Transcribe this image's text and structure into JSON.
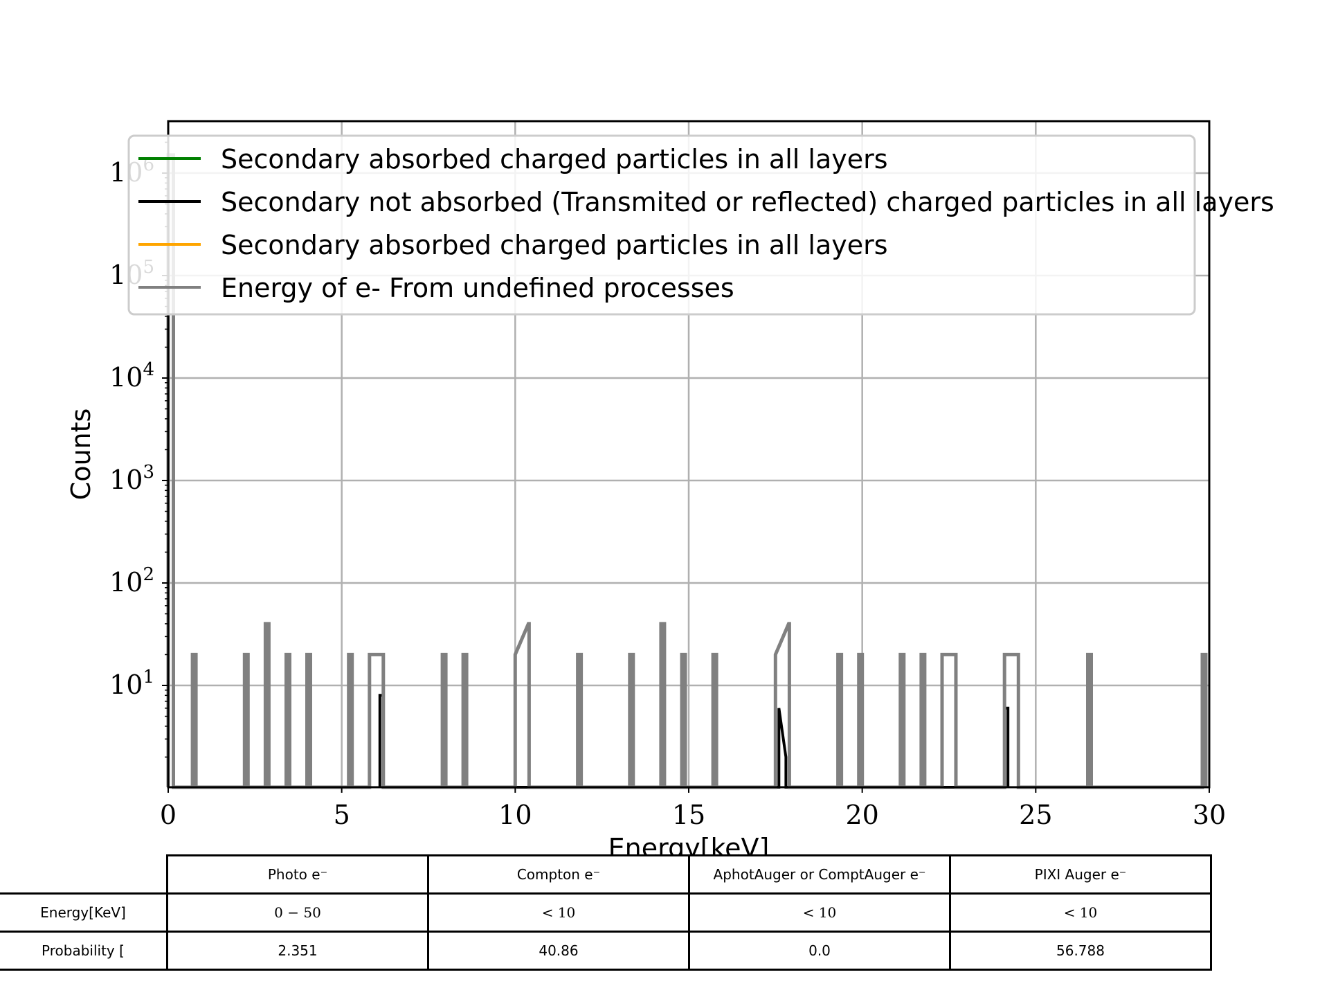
{
  "chart_data": {
    "type": "line",
    "xlabel": "Energy[keV]",
    "ylabel": "Counts",
    "xlim": [
      0,
      30
    ],
    "ylim": [
      1,
      3000000
    ],
    "yscale": "log",
    "grid": true,
    "legend_position": "top",
    "x_ticks": [
      "0",
      "5",
      "10",
      "15",
      "20",
      "25",
      "30"
    ],
    "y_ticks": [
      {
        "base": "10",
        "exp": "1"
      },
      {
        "base": "10",
        "exp": "2"
      },
      {
        "base": "10",
        "exp": "3"
      },
      {
        "base": "10",
        "exp": "4"
      },
      {
        "base": "10",
        "exp": "5"
      },
      {
        "base": "10",
        "exp": "6"
      }
    ],
    "series": [
      {
        "name": "Secondary absorbed charged particles in all layers",
        "color": "#008000",
        "x": [],
        "y": []
      },
      {
        "name": "Secondary not absorbed (Transmited or reflected) charged particles in all layers",
        "color": "#000000",
        "x": [
          6.1,
          6.1,
          6.2,
          6.2,
          17.6,
          17.6,
          17.8,
          17.8,
          24.1,
          24.1,
          24.2,
          24.2
        ],
        "y": [
          1,
          8,
          8,
          1,
          1,
          6,
          2,
          1,
          1,
          6,
          6,
          1
        ]
      },
      {
        "name": "Secondary absorbed charged particles in all layers",
        "color": "#ffa500",
        "x": [],
        "y": []
      },
      {
        "name": "Energy of e- From undefined processes",
        "color": "#808080",
        "spikes": [
          {
            "x0": 0.0,
            "x1": 0.15,
            "y": 1500000
          },
          {
            "x0": 0.7,
            "x1": 0.8,
            "y": 20
          },
          {
            "x0": 2.2,
            "x1": 2.3,
            "y": 20
          },
          {
            "x0": 2.8,
            "x1": 2.9,
            "y": 40
          },
          {
            "x0": 3.4,
            "x1": 3.5,
            "y": 20
          },
          {
            "x0": 4.0,
            "x1": 4.1,
            "y": 20
          },
          {
            "x0": 5.2,
            "x1": 5.3,
            "y": 20
          },
          {
            "x0": 5.8,
            "x1": 6.2,
            "y": 20
          },
          {
            "x0": 7.9,
            "x1": 8.0,
            "y": 20
          },
          {
            "x0": 8.5,
            "x1": 8.6,
            "y": 20
          },
          {
            "x0": 10.0,
            "x1": 10.4,
            "y": 20,
            "peak": 40
          },
          {
            "x0": 11.8,
            "x1": 11.9,
            "y": 20
          },
          {
            "x0": 13.3,
            "x1": 13.4,
            "y": 20
          },
          {
            "x0": 14.2,
            "x1": 14.3,
            "y": 40
          },
          {
            "x0": 14.8,
            "x1": 14.9,
            "y": 20
          },
          {
            "x0": 15.7,
            "x1": 15.8,
            "y": 20
          },
          {
            "x0": 17.5,
            "x1": 17.9,
            "y": 20,
            "peak": 40
          },
          {
            "x0": 19.3,
            "x1": 19.4,
            "y": 20
          },
          {
            "x0": 19.9,
            "x1": 20.0,
            "y": 20
          },
          {
            "x0": 21.1,
            "x1": 21.2,
            "y": 20
          },
          {
            "x0": 21.7,
            "x1": 21.8,
            "y": 20
          },
          {
            "x0": 22.3,
            "x1": 22.7,
            "y": 20
          },
          {
            "x0": 24.1,
            "x1": 24.5,
            "y": 20
          },
          {
            "x0": 26.5,
            "x1": 26.6,
            "y": 20
          },
          {
            "x0": 29.8,
            "x1": 29.9,
            "y": 20
          }
        ]
      }
    ]
  },
  "table": {
    "columns": [
      "Photo e⁻",
      "Compton e⁻",
      "AphotAuger or ComptAuger e⁻",
      "PIXI Auger e⁻"
    ],
    "rows": [
      {
        "label": "Energy[KeV]",
        "cells": [
          "0 − 50",
          "< 10",
          "< 10",
          "< 10"
        ]
      },
      {
        "label": "Probability [",
        "cells": [
          "2.351",
          "40.86",
          "0.0",
          "56.788"
        ]
      }
    ]
  }
}
